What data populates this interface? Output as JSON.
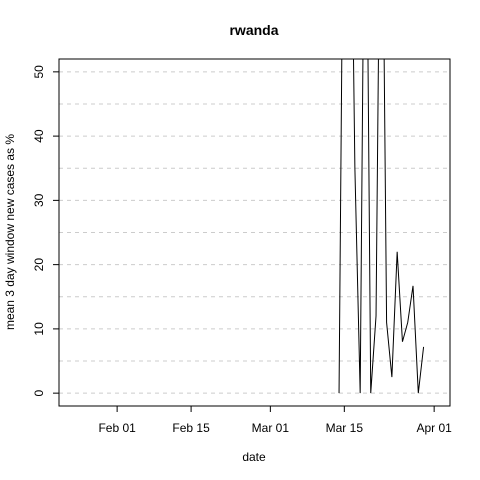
{
  "chart_data": {
    "type": "line",
    "title": "rwanda",
    "xlabel": "date",
    "ylabel": "mean  3  day window new cases as %",
    "x_ticks": [
      "Feb 01",
      "Feb 15",
      "Mar 01",
      "Mar 15",
      "Apr 01"
    ],
    "y_ticks": [
      "0",
      "10",
      "20",
      "30",
      "40",
      "50"
    ],
    "ylim": [
      -2,
      52
    ],
    "xlim": [
      "2020-01-21",
      "2020-04-04"
    ],
    "grid": "horizontal dashed",
    "series": [
      {
        "x": [
          "2020-03-14",
          "2020-03-15",
          "2020-03-16",
          "2020-03-17",
          "2020-03-18",
          "2020-03-19",
          "2020-03-20",
          "2020-03-21",
          "2020-03-22",
          "2020-03-23",
          "2020-03-24",
          "2020-03-25",
          "2020-03-26",
          "2020-03-27",
          "2020-03-28",
          "2020-03-29",
          "2020-03-30",
          "2020-03-31"
        ],
        "y": [
          0,
          100,
          100,
          35,
          0,
          100,
          0,
          12,
          100,
          11,
          2.5,
          22,
          8,
          11,
          16.7,
          0,
          7.2,
          null
        ]
      }
    ]
  }
}
